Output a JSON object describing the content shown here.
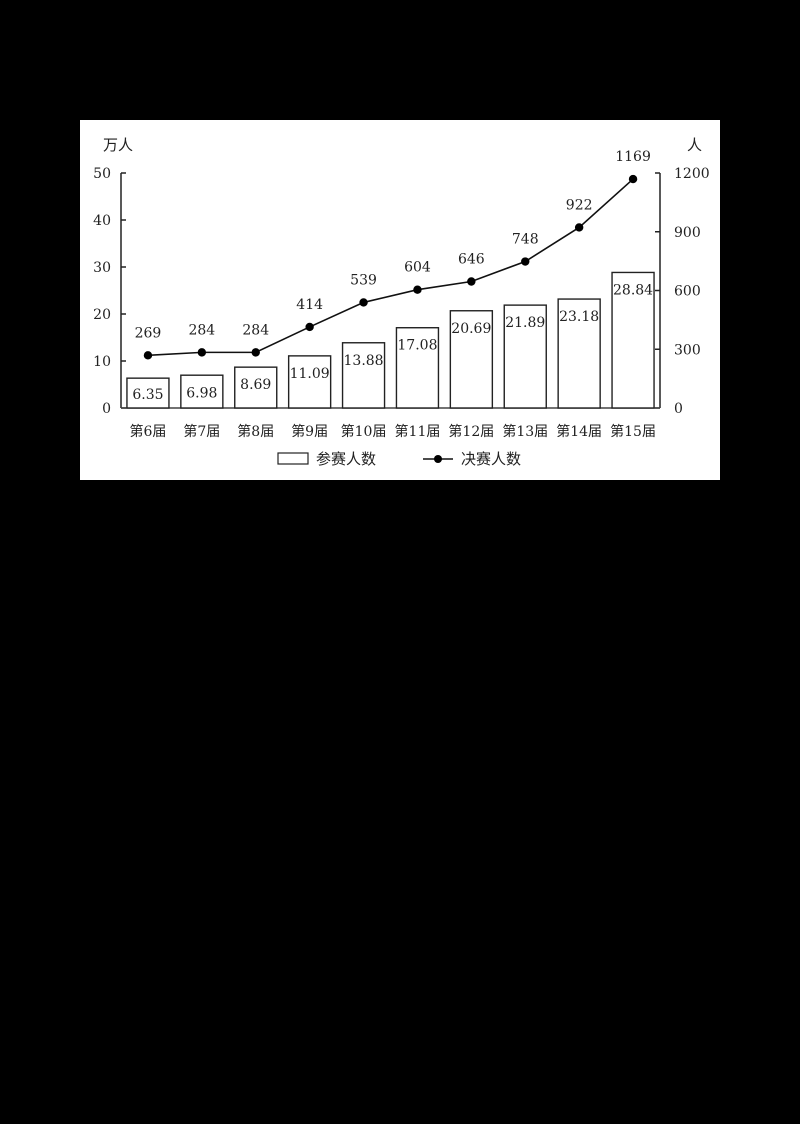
{
  "chart_data": {
    "type": "bar",
    "title": "",
    "categories": [
      "第6届",
      "第7届",
      "第8届",
      "第9届",
      "第10届",
      "第11届",
      "第12届",
      "第13届",
      "第14届",
      "第15届"
    ],
    "series": [
      {
        "name": "参赛人数",
        "type": "bar",
        "axis": "left",
        "values": [
          6.35,
          6.98,
          8.69,
          11.09,
          13.88,
          17.08,
          20.69,
          21.89,
          23.18,
          28.84
        ],
        "labels": [
          "6.35",
          "6.98",
          "8.69",
          "11.09",
          "13.88",
          "17.08",
          "20.69",
          "21.89",
          "23.18",
          "28.84"
        ]
      },
      {
        "name": "决赛人数",
        "type": "line",
        "axis": "right",
        "values": [
          269,
          284,
          284,
          414,
          539,
          604,
          646,
          748,
          922,
          1169
        ],
        "labels": [
          "269",
          "284",
          "284",
          "414",
          "539",
          "604",
          "646",
          "748",
          "922",
          "1169"
        ]
      }
    ],
    "y_left": {
      "label": "万人",
      "ylim": [
        0,
        50
      ],
      "ticks": [
        "0",
        "10",
        "20",
        "30",
        "40",
        "50"
      ]
    },
    "y_right": {
      "label": "人",
      "ylim": [
        0,
        1200
      ],
      "ticks": [
        "0",
        "300",
        "600",
        "900",
        "1200"
      ]
    },
    "xlabel": "",
    "grid": false,
    "legend": {
      "position": "bottom",
      "entries": [
        "参赛人数",
        "决赛人数"
      ]
    }
  }
}
